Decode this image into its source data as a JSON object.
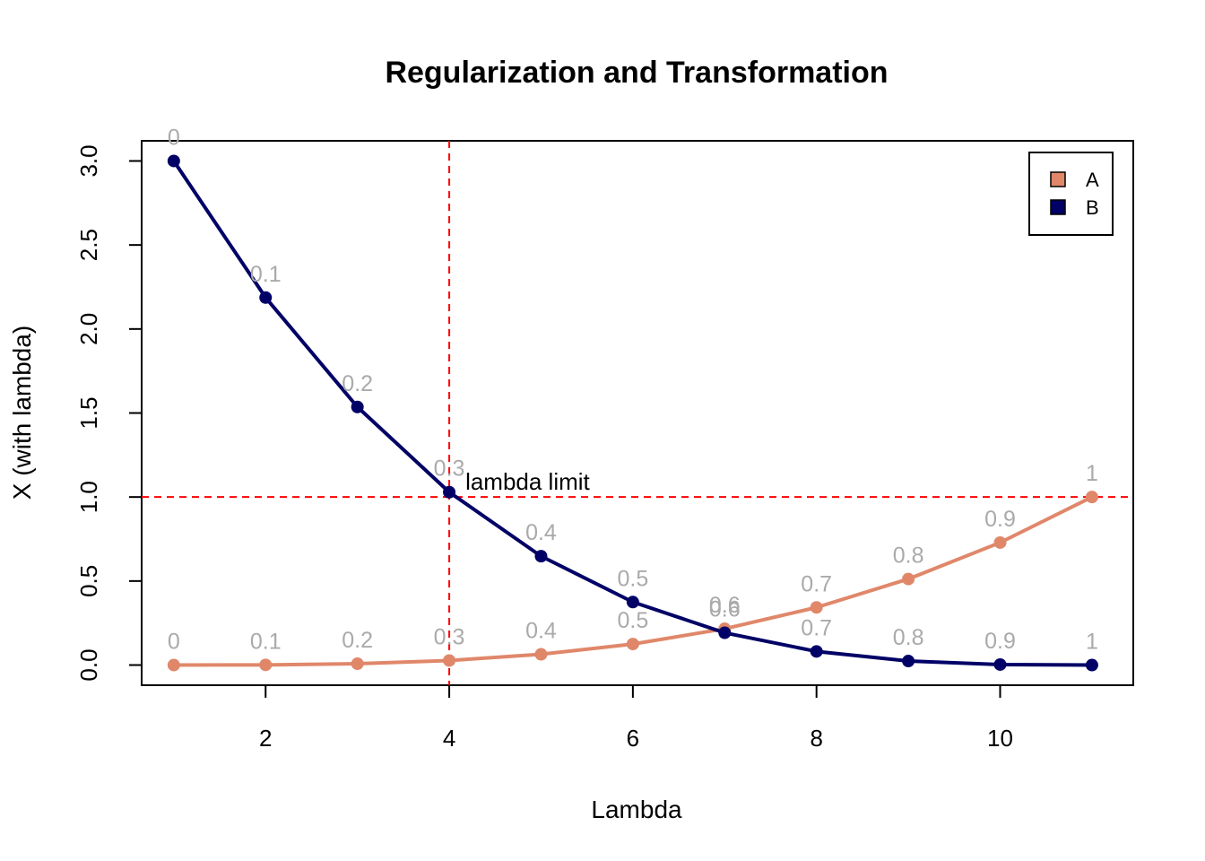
{
  "chart_data": {
    "type": "line",
    "title": "Regularization and Transformation",
    "xlabel": "Lambda",
    "ylabel": "X (with lambda)",
    "xlim": [
      0.65,
      11.45
    ],
    "ylim": [
      -0.12,
      3.12
    ],
    "x_ticks": [
      2,
      4,
      6,
      8,
      10
    ],
    "y_ticks": [
      0.0,
      0.5,
      1.0,
      1.5,
      2.0,
      2.5,
      3.0
    ],
    "x_tick_labels": [
      "2",
      "4",
      "6",
      "8",
      "10"
    ],
    "y_tick_labels": [
      "0.0",
      "0.5",
      "1.0",
      "1.5",
      "2.0",
      "2.5",
      "3.0"
    ],
    "x": [
      1,
      2,
      3,
      4,
      5,
      6,
      7,
      8,
      9,
      10,
      11
    ],
    "series": [
      {
        "name": "A",
        "color": "#E0876A",
        "values": [
          0.0,
          0.001,
          0.008,
          0.027,
          0.064,
          0.125,
          0.216,
          0.343,
          0.512,
          0.729,
          1.0
        ],
        "point_labels": [
          "0",
          "0.1",
          "0.2",
          "0.3",
          "0.4",
          "0.5",
          "0.6",
          "0.7",
          "0.8",
          "0.9",
          "1"
        ]
      },
      {
        "name": "B",
        "color": "#000066",
        "values": [
          3.0,
          2.187,
          1.536,
          1.029,
          0.648,
          0.375,
          0.192,
          0.081,
          0.024,
          0.003,
          0.0
        ],
        "point_labels": [
          "0",
          "0.1",
          "0.2",
          "0.3",
          "0.4",
          "0.5",
          "0.6",
          "0.7",
          "0.8",
          "0.9",
          "1"
        ]
      }
    ],
    "reference_lines": {
      "vertical_x": 4,
      "horizontal_y": 1.0,
      "color": "#FF0000",
      "style": "dashed",
      "annotation": "lambda limit"
    },
    "legend": {
      "position": "top-right",
      "entries": [
        "A",
        "B"
      ]
    },
    "grid": false
  }
}
